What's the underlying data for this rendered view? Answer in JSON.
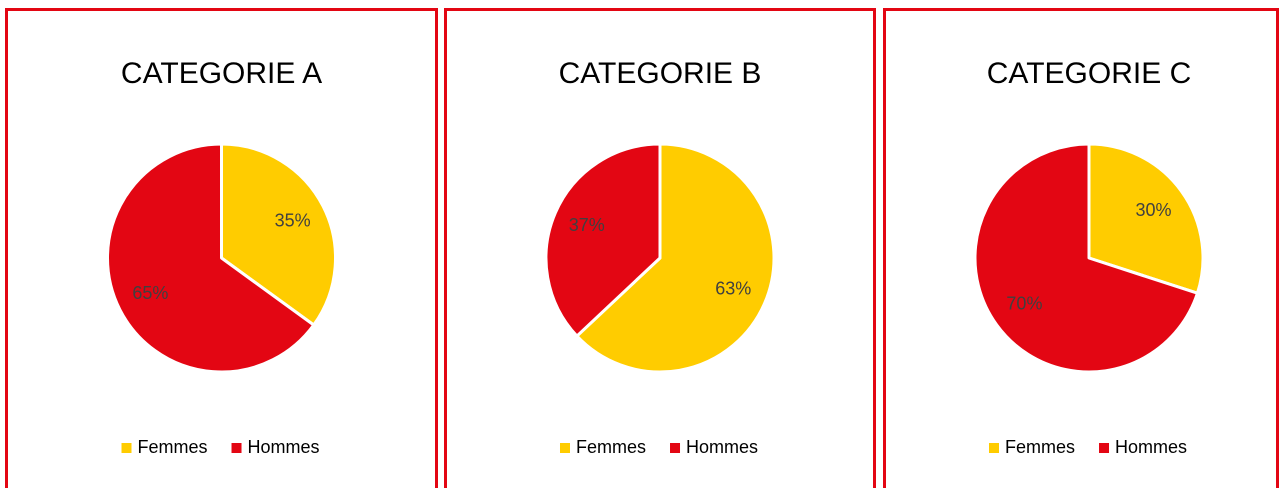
{
  "chart_data": [
    {
      "type": "pie",
      "title": "CATEGORIE A",
      "categories": [
        "Femmes",
        "Hommes"
      ],
      "values": [
        35,
        65
      ],
      "value_labels": [
        "35%",
        "65%"
      ],
      "colors": [
        "#ffcc00",
        "#e30613"
      ],
      "legend": "bottom"
    },
    {
      "type": "pie",
      "title": "CATEGORIE B",
      "categories": [
        "Femmes",
        "Hommes"
      ],
      "values": [
        63,
        37
      ],
      "value_labels": [
        "63%",
        "37%"
      ],
      "colors": [
        "#ffcc00",
        "#e30613"
      ],
      "legend": "bottom"
    },
    {
      "type": "pie",
      "title": "CATEGORIE C",
      "categories": [
        "Femmes",
        "Hommes"
      ],
      "values": [
        30,
        70
      ],
      "value_labels": [
        "30%",
        "70%"
      ],
      "colors": [
        "#ffcc00",
        "#e30613"
      ],
      "legend": "bottom"
    }
  ]
}
